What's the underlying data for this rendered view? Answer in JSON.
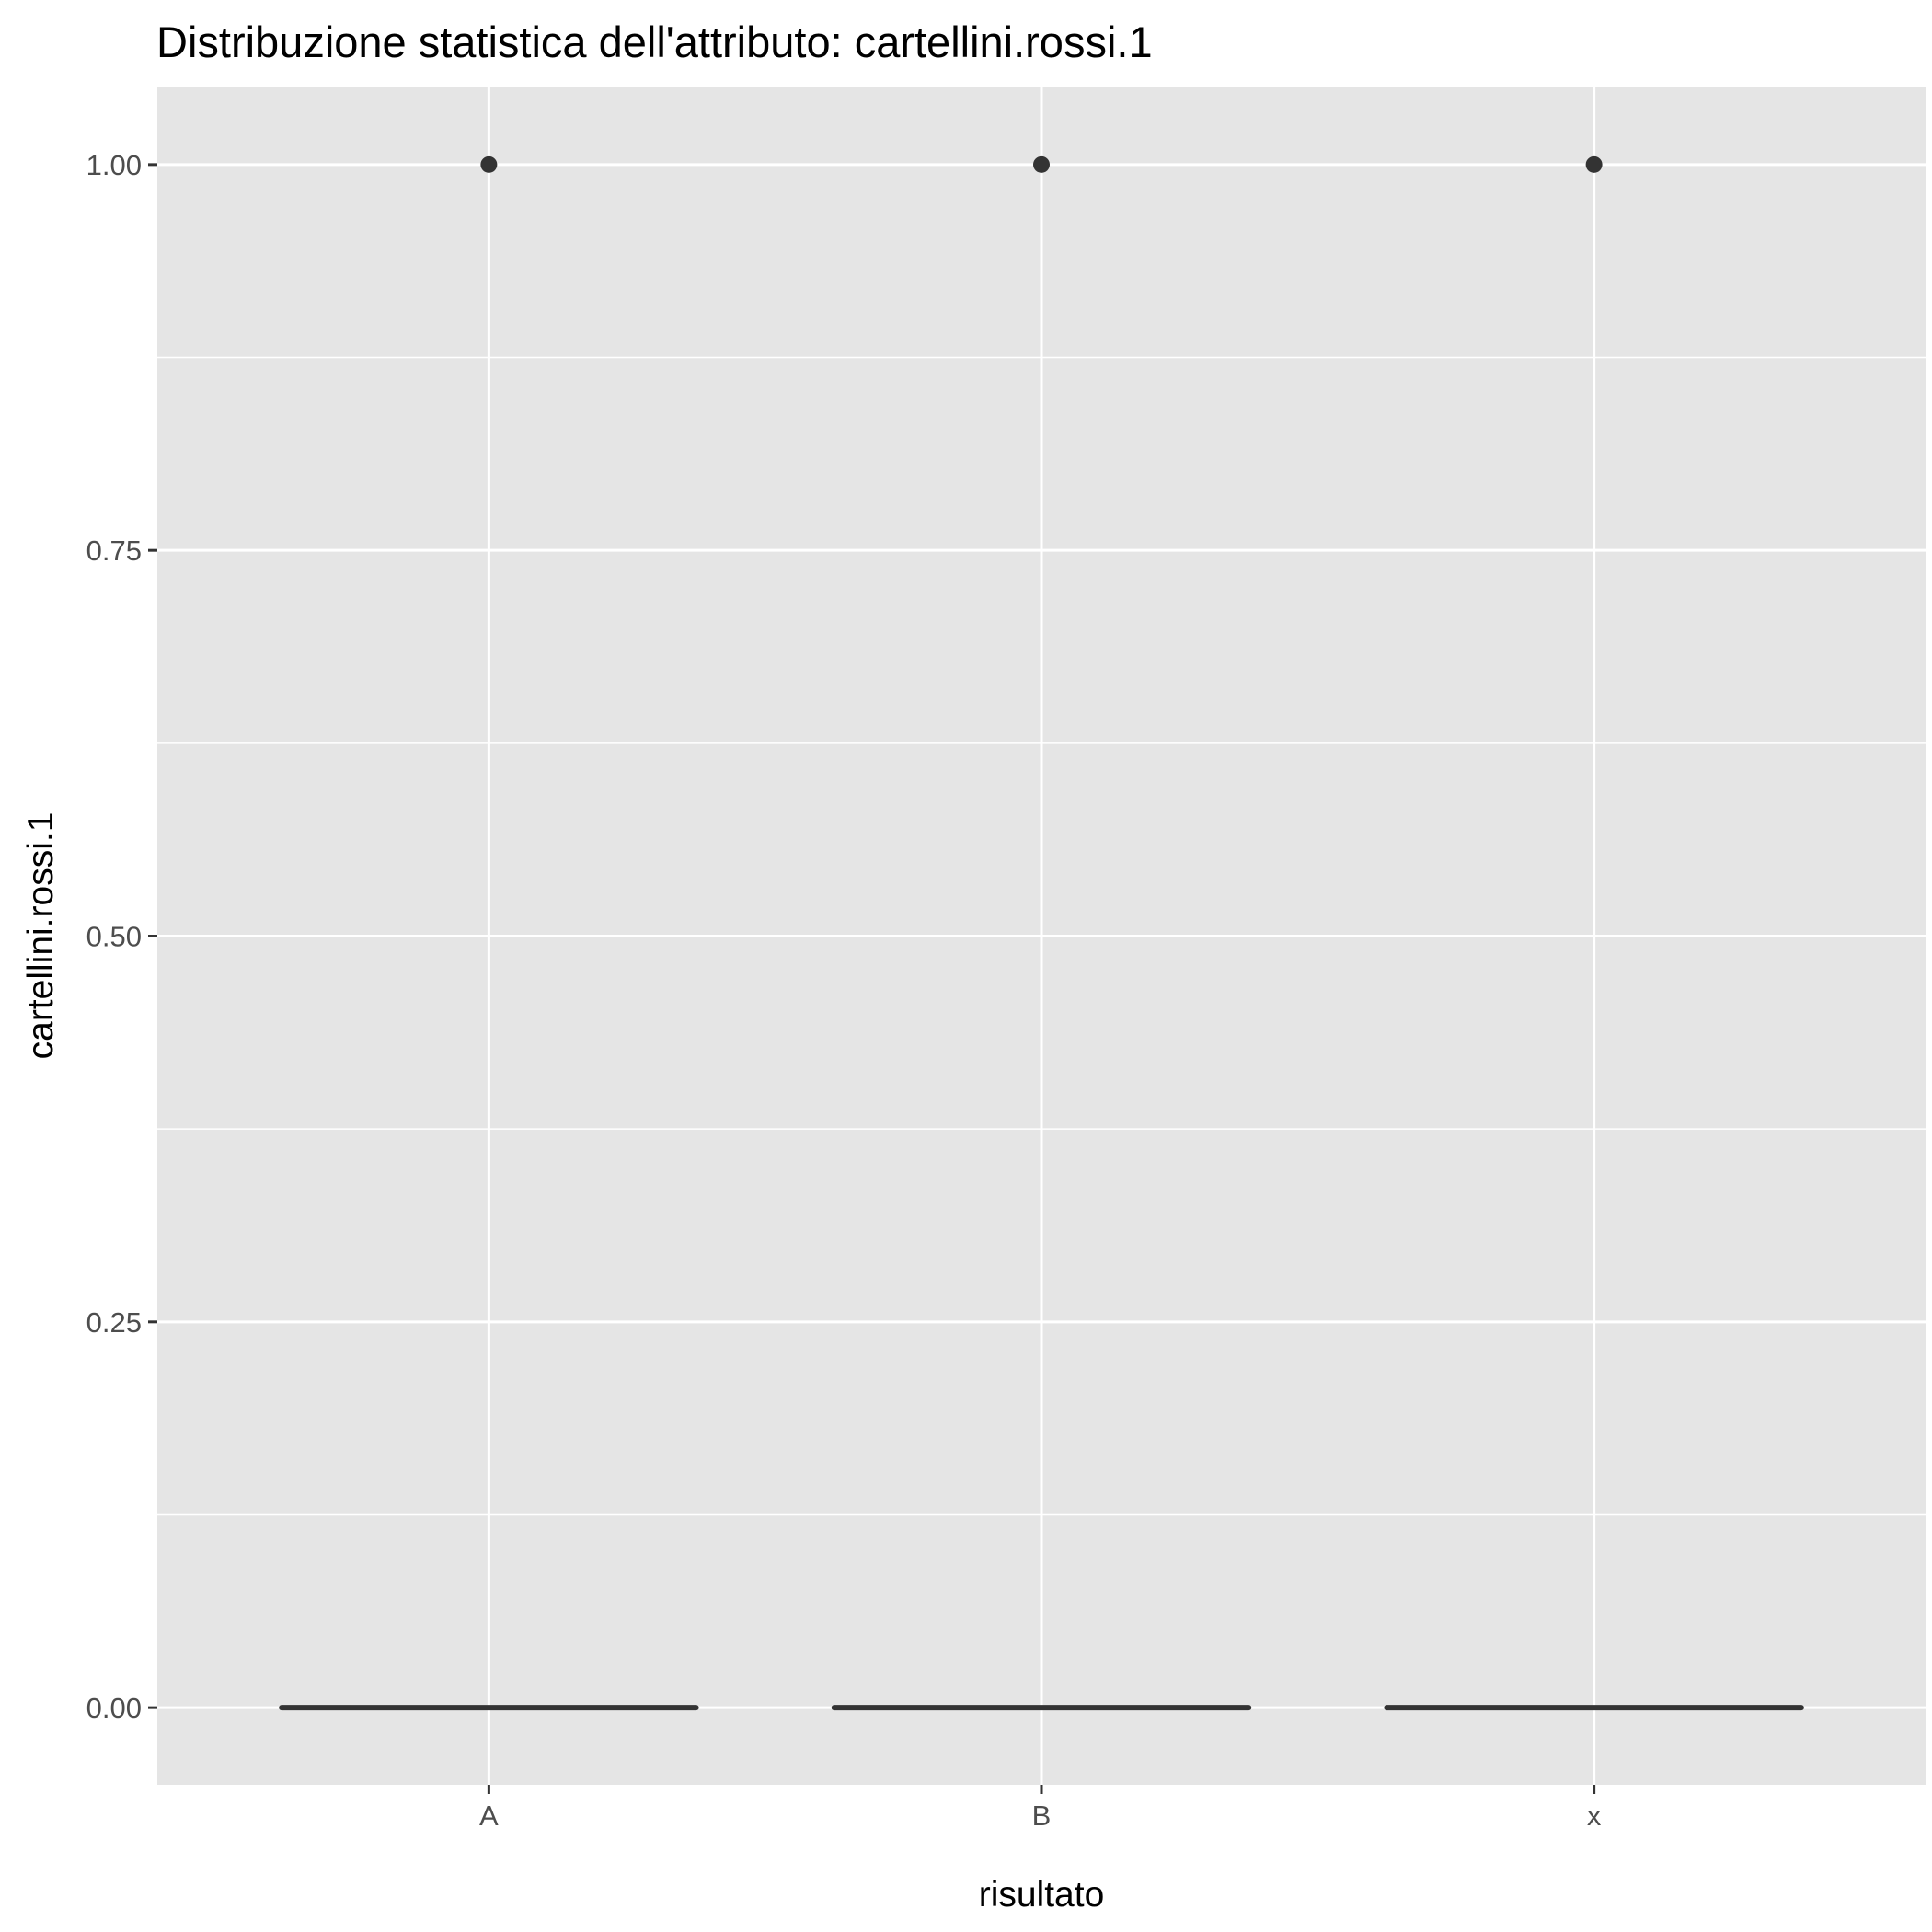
{
  "chart_data": {
    "type": "boxplot",
    "title": "Distribuzione statistica dell'attributo: cartellini.rossi.1",
    "xlabel": "risultato",
    "ylabel": "cartellini.rossi.1",
    "categories": [
      "A",
      "B",
      "x"
    ],
    "ylim": [
      -0.05,
      1.05
    ],
    "yticks": [
      0.0,
      0.25,
      0.5,
      0.75,
      1.0
    ],
    "ytick_labels": [
      "0.00",
      "0.25",
      "0.50",
      "0.75",
      "1.00"
    ],
    "boxes": [
      {
        "category": "A",
        "min": 0,
        "q1": 0,
        "median": 0,
        "q3": 0,
        "max": 0,
        "outliers": [
          1
        ]
      },
      {
        "category": "B",
        "min": 0,
        "q1": 0,
        "median": 0,
        "q3": 0,
        "max": 0,
        "outliers": [
          1
        ]
      },
      {
        "category": "x",
        "min": 0,
        "q1": 0,
        "median": 0,
        "q3": 0,
        "max": 0,
        "outliers": [
          1
        ]
      }
    ],
    "grid": true,
    "legend": "none",
    "colors": {
      "panel": "#e5e5e5",
      "grid": "#ffffff",
      "box": "#333333",
      "tick": "#4d4d4d"
    }
  }
}
